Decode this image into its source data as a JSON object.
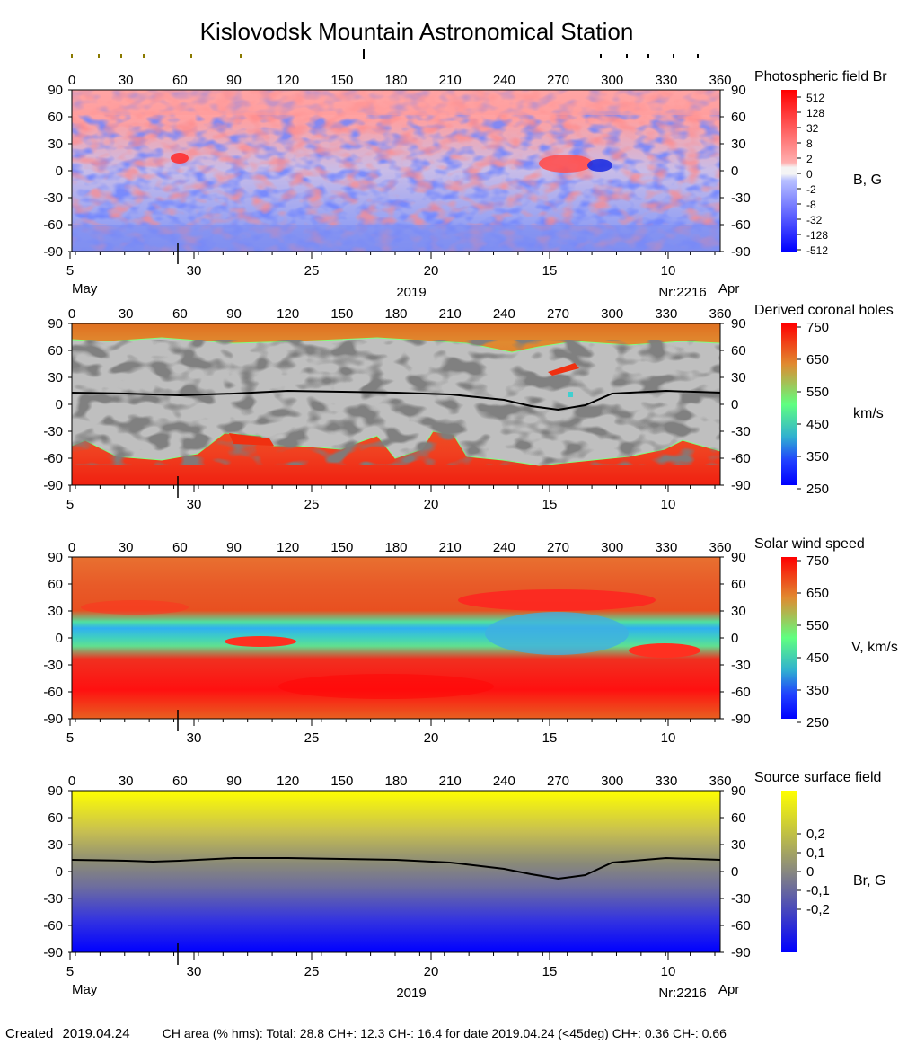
{
  "page": {
    "title": "Kislovodsk Mountain Astronomical Station",
    "footer": {
      "created_label": "Created",
      "created_date": "2019.04.24",
      "ch_text": "CH area (% hms): Total: 28.8 CH+: 12.3    CH-: 16.4 for date 2019.04.24 (<45deg) CH+: 0.36     CH-: 0.66"
    }
  },
  "shared_axes": {
    "longitude_ticks": [
      0,
      30,
      60,
      90,
      120,
      150,
      180,
      210,
      240,
      270,
      300,
      330,
      360
    ],
    "latitude_ticks": [
      90,
      60,
      30,
      0,
      -30,
      -60,
      -90
    ],
    "date_ticks": [
      "5",
      "30",
      "25",
      "20",
      "15",
      "10"
    ],
    "month_start": "May",
    "month_end": "Apr",
    "year": "2019",
    "rotation": "Nr:2216"
  },
  "chart_data": [
    {
      "type": "heatmap",
      "title": "Photospheric field Br",
      "colorbar_label": "B, G",
      "colorbar_ticks": [
        "512",
        "128",
        "32",
        "8",
        "2",
        "0",
        "-2",
        "-8",
        "-32",
        "-128",
        "-512"
      ],
      "xlim": [
        0,
        360
      ],
      "ylim": [
        -90,
        90
      ],
      "colors": {
        "positive": "#ff2020",
        "negative": "#2030ff",
        "zero": "#f0f0f0"
      },
      "notable_regions": [
        {
          "label": "active region",
          "lon": 270,
          "lat": 12,
          "polarity": "bipolar"
        },
        {
          "label": "active region",
          "lon": 57,
          "lat": 14,
          "polarity": "positive"
        }
      ]
    },
    {
      "type": "heatmap",
      "title": "Derived coronal holes",
      "colorbar_label": "km/s",
      "colorbar_ticks": [
        "750",
        "650",
        "550",
        "450",
        "350",
        "250"
      ],
      "xlim": [
        0,
        360
      ],
      "ylim": [
        -90,
        90
      ],
      "neutral_line": [
        [
          0,
          13
        ],
        [
          30,
          12
        ],
        [
          60,
          10
        ],
        [
          90,
          12
        ],
        [
          120,
          15
        ],
        [
          150,
          14
        ],
        [
          180,
          13
        ],
        [
          210,
          11
        ],
        [
          240,
          5
        ],
        [
          255,
          -2
        ],
        [
          270,
          -6
        ],
        [
          285,
          -1
        ],
        [
          300,
          12
        ],
        [
          330,
          15
        ],
        [
          360,
          13
        ]
      ]
    },
    {
      "type": "heatmap",
      "title": "Solar wind speed",
      "colorbar_label": "V, km/s",
      "colorbar_ticks": [
        "750",
        "650",
        "550",
        "450",
        "350",
        "250"
      ],
      "xlim": [
        0,
        360
      ],
      "ylim": [
        -90,
        90
      ]
    },
    {
      "type": "heatmap",
      "title": "Source surface field",
      "colorbar_label": "Br, G",
      "colorbar_ticks": [
        "0,2",
        "0,1",
        "0",
        "-0,1",
        "-0,2"
      ],
      "xlim": [
        0,
        360
      ],
      "ylim": [
        -90,
        90
      ],
      "neutral_line": [
        [
          0,
          13
        ],
        [
          30,
          12
        ],
        [
          45,
          11
        ],
        [
          60,
          12
        ],
        [
          90,
          15
        ],
        [
          120,
          15
        ],
        [
          150,
          14
        ],
        [
          180,
          13
        ],
        [
          210,
          10
        ],
        [
          240,
          3
        ],
        [
          255,
          -3
        ],
        [
          270,
          -8
        ],
        [
          285,
          -4
        ],
        [
          300,
          10
        ],
        [
          330,
          15
        ],
        [
          360,
          13
        ]
      ]
    }
  ]
}
